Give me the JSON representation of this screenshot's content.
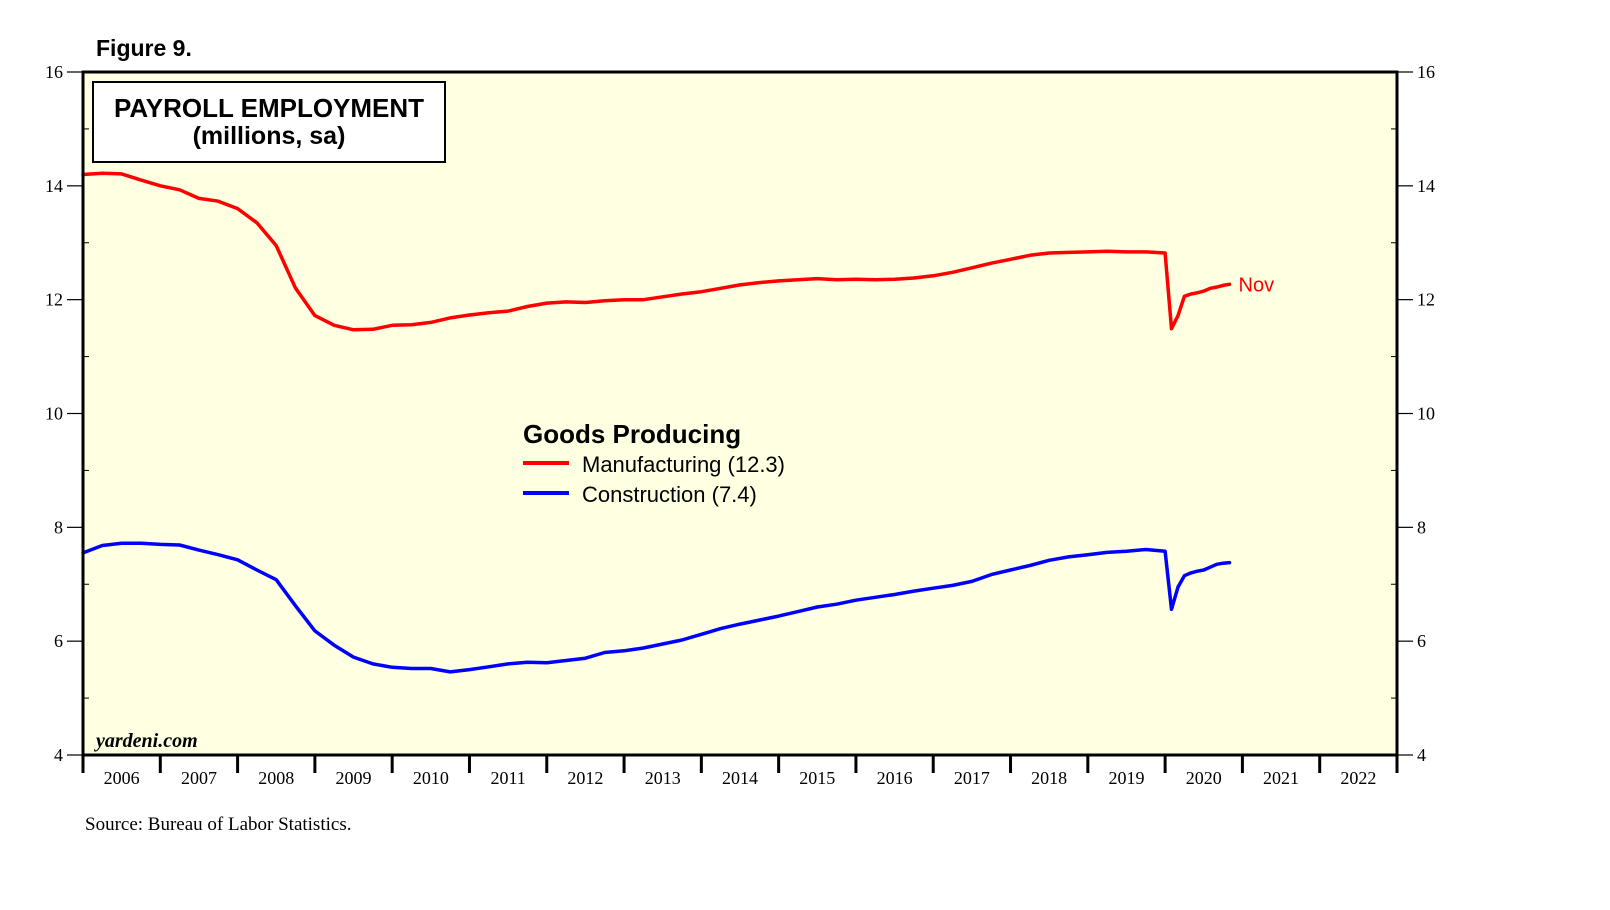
{
  "figure_label": "Figure 9.",
  "source": "Source: Bureau of Labor Statistics.",
  "watermark": "yardeni.com",
  "chart_data": {
    "type": "line",
    "title": "PAYROLL EMPLOYMENT",
    "subtitle": "(millions, sa)",
    "legend_title": "Goods Producing",
    "legend_position": "center",
    "xlim": [
      2006.0,
      2023.0
    ],
    "ylim": [
      4,
      16
    ],
    "y_ticks": [
      4,
      6,
      8,
      10,
      12,
      14,
      16
    ],
    "y_tick_labels": [
      "4",
      "6",
      "8",
      "10",
      "12",
      "14",
      "16"
    ],
    "x_tick_labels": [
      "2006",
      "2007",
      "2008",
      "2009",
      "2010",
      "2011",
      "2012",
      "2013",
      "2014",
      "2015",
      "2016",
      "2017",
      "2018",
      "2019",
      "2020",
      "2021",
      "2022"
    ],
    "grid": false,
    "background_color": "#ffffe1",
    "series": [
      {
        "name": "Manufacturing (12.3)",
        "color": "#ff0000",
        "end_label": "Nov",
        "x": [
          2006.0,
          2006.25,
          2006.5,
          2006.75,
          2007.0,
          2007.25,
          2007.5,
          2007.75,
          2008.0,
          2008.25,
          2008.5,
          2008.75,
          2009.0,
          2009.25,
          2009.5,
          2009.75,
          2010.0,
          2010.25,
          2010.5,
          2010.75,
          2011.0,
          2011.25,
          2011.5,
          2011.75,
          2012.0,
          2012.25,
          2012.5,
          2012.75,
          2013.0,
          2013.25,
          2013.5,
          2013.75,
          2014.0,
          2014.25,
          2014.5,
          2014.75,
          2015.0,
          2015.25,
          2015.5,
          2015.75,
          2016.0,
          2016.25,
          2016.5,
          2016.75,
          2017.0,
          2017.25,
          2017.5,
          2017.75,
          2018.0,
          2018.25,
          2018.5,
          2018.75,
          2019.0,
          2019.25,
          2019.5,
          2019.75,
          2020.0,
          2020.083,
          2020.167,
          2020.25,
          2020.333,
          2020.417,
          2020.5,
          2020.583,
          2020.667,
          2020.75,
          2020.833
        ],
        "y": [
          14.2,
          14.22,
          14.21,
          14.1,
          14.0,
          13.93,
          13.78,
          13.73,
          13.6,
          13.35,
          12.95,
          12.2,
          11.72,
          11.55,
          11.47,
          11.48,
          11.55,
          11.56,
          11.6,
          11.68,
          11.73,
          11.77,
          11.8,
          11.88,
          11.94,
          11.96,
          11.95,
          11.98,
          12.0,
          12.0,
          12.05,
          12.1,
          12.14,
          12.2,
          12.26,
          12.3,
          12.33,
          12.35,
          12.37,
          12.35,
          12.36,
          12.35,
          12.36,
          12.38,
          12.42,
          12.48,
          12.56,
          12.64,
          12.71,
          12.78,
          12.82,
          12.83,
          12.84,
          12.85,
          12.84,
          12.84,
          12.82,
          11.49,
          11.72,
          12.06,
          12.1,
          12.12,
          12.15,
          12.2,
          12.22,
          12.25,
          12.27
        ]
      },
      {
        "name": "Construction (7.4)",
        "color": "#0000ff",
        "x": [
          2006.0,
          2006.25,
          2006.5,
          2006.75,
          2007.0,
          2007.25,
          2007.5,
          2007.75,
          2008.0,
          2008.25,
          2008.5,
          2008.75,
          2009.0,
          2009.25,
          2009.5,
          2009.75,
          2010.0,
          2010.25,
          2010.5,
          2010.75,
          2011.0,
          2011.25,
          2011.5,
          2011.75,
          2012.0,
          2012.25,
          2012.5,
          2012.75,
          2013.0,
          2013.25,
          2013.5,
          2013.75,
          2014.0,
          2014.25,
          2014.5,
          2014.75,
          2015.0,
          2015.25,
          2015.5,
          2015.75,
          2016.0,
          2016.25,
          2016.5,
          2016.75,
          2017.0,
          2017.25,
          2017.5,
          2017.75,
          2018.0,
          2018.25,
          2018.5,
          2018.75,
          2019.0,
          2019.25,
          2019.5,
          2019.75,
          2020.0,
          2020.083,
          2020.167,
          2020.25,
          2020.333,
          2020.417,
          2020.5,
          2020.583,
          2020.667,
          2020.75,
          2020.833
        ],
        "y": [
          7.55,
          7.68,
          7.72,
          7.72,
          7.7,
          7.69,
          7.6,
          7.52,
          7.43,
          7.25,
          7.08,
          6.62,
          6.18,
          5.93,
          5.72,
          5.6,
          5.54,
          5.52,
          5.52,
          5.46,
          5.5,
          5.55,
          5.6,
          5.63,
          5.62,
          5.66,
          5.7,
          5.8,
          5.83,
          5.88,
          5.95,
          6.02,
          6.12,
          6.22,
          6.3,
          6.37,
          6.44,
          6.52,
          6.6,
          6.65,
          6.72,
          6.77,
          6.82,
          6.88,
          6.93,
          6.98,
          7.05,
          7.17,
          7.25,
          7.33,
          7.42,
          7.48,
          7.52,
          7.56,
          7.58,
          7.61,
          7.58,
          6.56,
          6.95,
          7.15,
          7.2,
          7.23,
          7.25,
          7.3,
          7.35,
          7.37,
          7.38
        ]
      }
    ]
  }
}
